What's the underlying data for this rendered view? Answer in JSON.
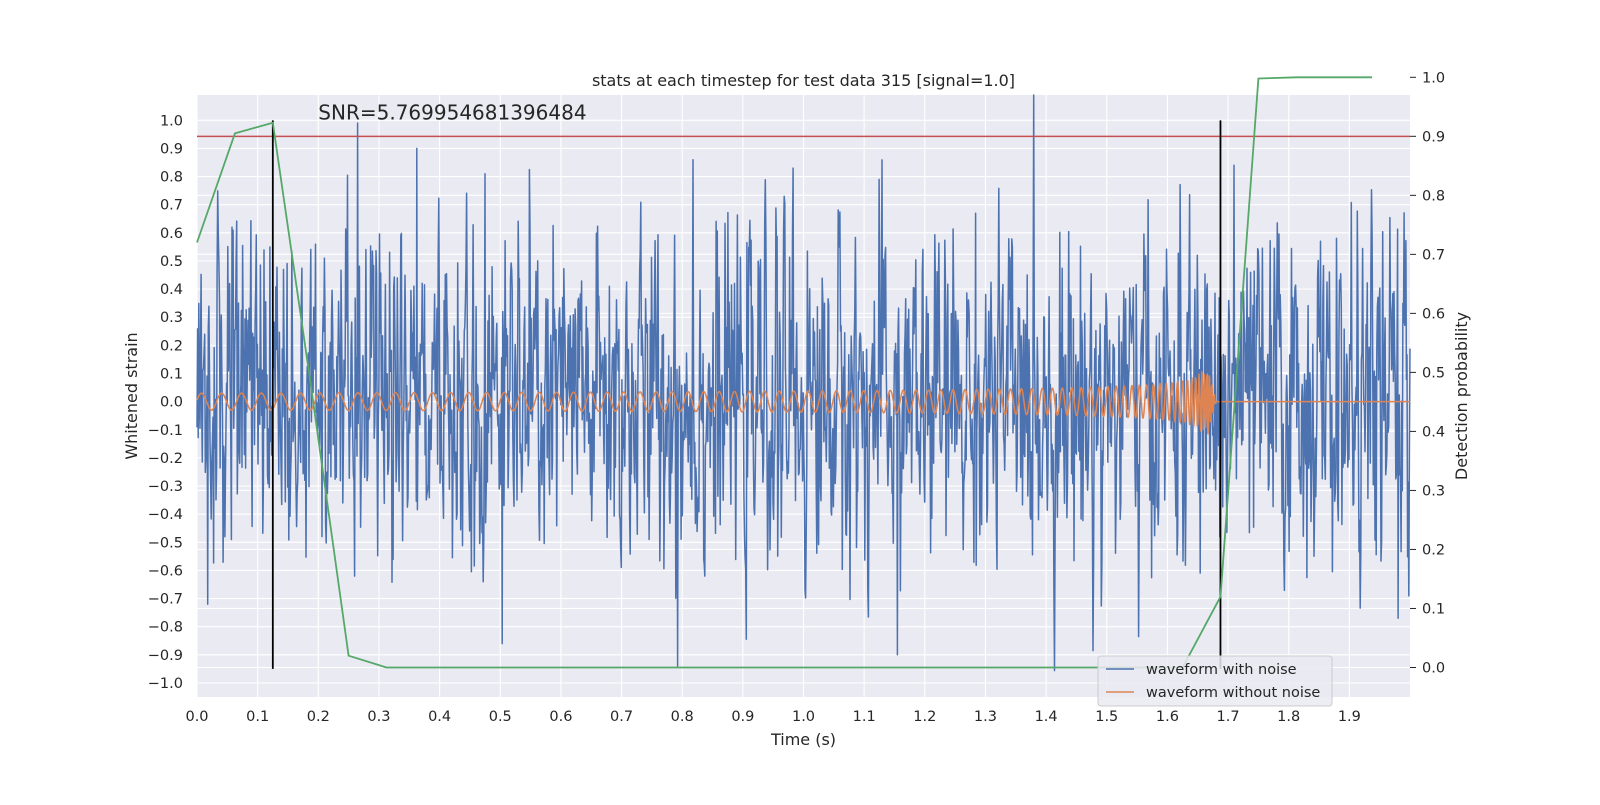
{
  "chart_data": {
    "type": "line",
    "title": "stats at each timestep for test data 315 [signal=1.0]",
    "annotation": "SNR=5.769954681396484",
    "xlabel": "Time (s)",
    "ylabel": "Whitened strain",
    "y2label": "Detection probability",
    "xlim": [
      0.0,
      2.0
    ],
    "ylim": [
      -1.05,
      1.09
    ],
    "y2lim": [
      -0.05,
      0.97
    ],
    "xticks": [
      0.0,
      0.1,
      0.2,
      0.3,
      0.4,
      0.5,
      0.6,
      0.7,
      0.8,
      0.9,
      1.0,
      1.1,
      1.2,
      1.3,
      1.4,
      1.5,
      1.6,
      1.7,
      1.8,
      1.9
    ],
    "xtick_labels": [
      "0.0",
      "0.1",
      "0.2",
      "0.3",
      "0.4",
      "0.5",
      "0.6",
      "0.7",
      "0.8",
      "0.9",
      "1.0",
      "1.1",
      "1.2",
      "1.3",
      "1.4",
      "1.5",
      "1.6",
      "1.7",
      "1.8",
      "1.9"
    ],
    "yticks": [
      1.0,
      0.9,
      0.8,
      0.7,
      0.6,
      0.5,
      0.4,
      0.3,
      0.2,
      0.1,
      0.0,
      -0.1,
      -0.2,
      -0.3,
      -0.4,
      -0.5,
      -0.6,
      -0.7,
      -0.8,
      -0.9,
      -1.0
    ],
    "ytick_labels": [
      "1.0",
      "0.9",
      "0.8",
      "0.7",
      "0.6",
      "0.5",
      "0.4",
      "0.3",
      "0.2",
      "0.1",
      "0.0",
      "−0.1",
      "−0.2",
      "−0.3",
      "−0.4",
      "−0.5",
      "−0.6",
      "−0.7",
      "−0.8",
      "−0.9",
      "−1.0"
    ],
    "y2ticks": [
      1.0,
      0.9,
      0.8,
      0.7,
      0.6,
      0.5,
      0.4,
      0.3,
      0.2,
      0.1,
      0.0
    ],
    "y2tick_labels": [
      "1.0",
      "0.9",
      "0.8",
      "0.7",
      "0.6",
      "0.5",
      "0.4",
      "0.3",
      "0.2",
      "0.1",
      "0.0"
    ],
    "legend": {
      "placement": "lower-right",
      "entries": [
        {
          "label": "waveform with noise",
          "color": "#4c72b0"
        },
        {
          "label": "waveform without noise",
          "color": "#dd8452"
        }
      ]
    },
    "series": [
      {
        "name": "waveform with noise",
        "axis": "left",
        "color": "#4c72b0",
        "kind": "noise",
        "t_range": [
          0.0,
          2.0
        ],
        "samples": 2048,
        "amplitude_rms": 0.3,
        "peak_values": [
          {
            "x": 0.265,
            "y": 0.99
          },
          {
            "x": 0.362,
            "y": 0.9
          },
          {
            "x": 0.475,
            "y": 0.81
          },
          {
            "x": 0.818,
            "y": 0.86
          },
          {
            "x": 0.983,
            "y": 0.83
          },
          {
            "x": 1.71,
            "y": 0.84
          },
          {
            "x": 0.792,
            "y": -0.94
          },
          {
            "x": 1.155,
            "y": -0.9
          },
          {
            "x": 0.503,
            "y": -0.86
          },
          {
            "x": 0.018,
            "y": -0.72
          },
          {
            "x": 1.98,
            "y": -0.77
          }
        ]
      },
      {
        "name": "waveform without noise",
        "axis": "left",
        "color": "#dd8452",
        "kind": "chirp",
        "t_range": [
          0.0,
          2.0
        ],
        "start_freq_hz": 30,
        "merger_time": 1.665,
        "start_amplitude": 0.03,
        "peak_amplitude": 0.17,
        "samples": 2048
      },
      {
        "name": "Detection probability",
        "axis": "right",
        "color": "#55a868",
        "x": [
          0.0,
          0.0625,
          0.125,
          0.1875,
          0.25,
          0.3125,
          0.375,
          0.4375,
          0.5,
          0.5625,
          0.625,
          0.6875,
          0.75,
          0.8125,
          0.875,
          0.9375,
          1.0,
          1.0625,
          1.125,
          1.1875,
          1.25,
          1.3125,
          1.375,
          1.4375,
          1.5,
          1.5625,
          1.625,
          1.6875,
          1.75,
          1.8125,
          1.875,
          1.9375
        ],
        "y": [
          0.72,
          0.905,
          0.923,
          0.48,
          0.02,
          0.0,
          0.0,
          0.0,
          0.0,
          0.0,
          0.0,
          0.0,
          0.0,
          0.0,
          0.0,
          0.0,
          0.0,
          0.0,
          0.0,
          0.0,
          0.0,
          0.0,
          0.0,
          0.0,
          0.0,
          0.0,
          0.0,
          0.12,
          0.998,
          1.0,
          1.0,
          1.0
        ]
      }
    ],
    "hlines": [
      {
        "name": "threshold",
        "axis": "right",
        "y": 0.9,
        "color": "#c44e52"
      }
    ],
    "vlines": [
      {
        "name": "window-start",
        "x": 0.125,
        "y_range": [
          -0.95,
          1.0
        ],
        "color": "#000000"
      },
      {
        "name": "window-end",
        "x": 1.6875,
        "y_range": [
          -0.95,
          1.0
        ],
        "color": "#000000"
      }
    ],
    "grid": true
  }
}
